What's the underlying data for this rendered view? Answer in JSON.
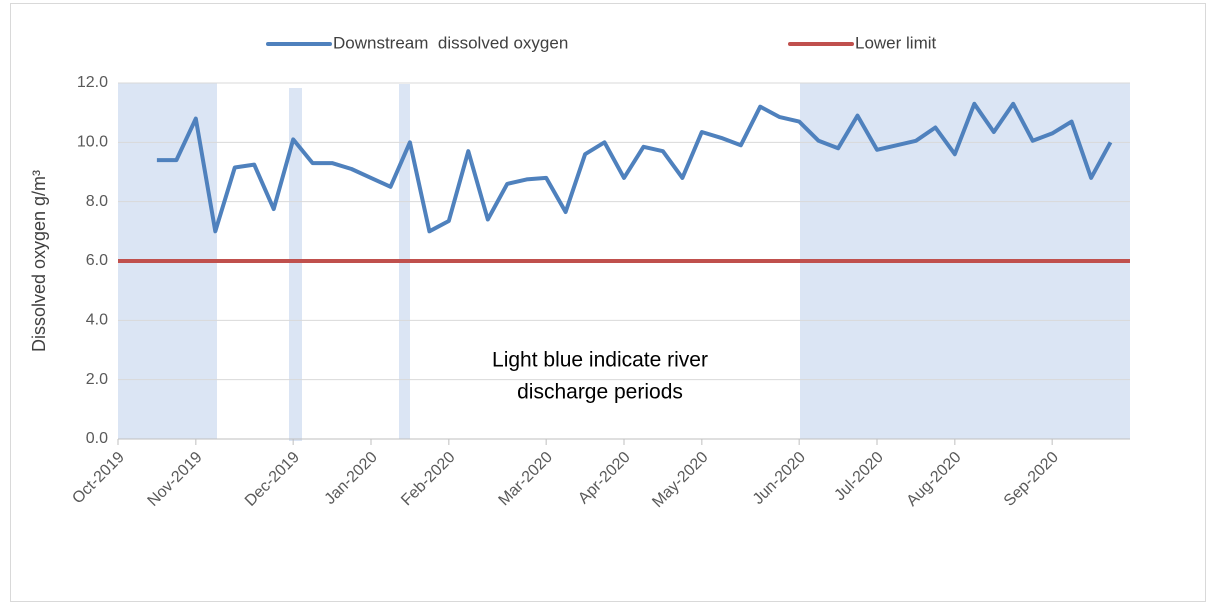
{
  "chart_data": {
    "type": "line",
    "y_label": "Dissolved oxygen g/m³",
    "annotation": [
      "Light blue indicate river",
      "discharge periods"
    ],
    "categories": [
      "Oct-2019",
      null,
      null,
      null,
      "Nov-2019",
      null,
      null,
      null,
      null,
      "Dec-2019",
      null,
      null,
      null,
      "Jan-2020",
      null,
      null,
      null,
      "Feb-2020",
      null,
      null,
      null,
      null,
      "Mar-2020",
      null,
      null,
      null,
      "Apr-2020",
      null,
      null,
      null,
      "May-2020",
      null,
      null,
      null,
      null,
      "Jun-2020",
      null,
      null,
      null,
      "Jul-2020",
      null,
      null,
      null,
      "Aug-2020",
      null,
      null,
      null,
      null,
      "Sep-2020",
      null,
      null,
      null,
      null
    ],
    "series": [
      {
        "name": "Downstream  dissolved oxygen",
        "color": "#4f81bd",
        "values": [
          null,
          null,
          9.4,
          9.4,
          10.8,
          7.0,
          9.15,
          9.25,
          7.75,
          10.1,
          9.3,
          9.3,
          9.1,
          8.8,
          8.5,
          10.0,
          7.0,
          7.35,
          9.7,
          7.4,
          8.6,
          8.75,
          8.8,
          7.65,
          9.6,
          10.0,
          8.8,
          9.85,
          9.7,
          8.8,
          10.35,
          10.15,
          9.9,
          11.2,
          10.85,
          10.7,
          10.05,
          9.8,
          10.9,
          9.75,
          9.9,
          10.05,
          10.5,
          9.6,
          11.3,
          10.35,
          11.3,
          10.05,
          10.3,
          10.7,
          8.8,
          10.0,
          null
        ]
      },
      {
        "name": "Lower limit",
        "color": "#c0504d",
        "values": [
          6,
          6,
          6,
          6,
          6,
          6,
          6,
          6,
          6,
          6,
          6,
          6,
          6,
          6,
          6,
          6,
          6,
          6,
          6,
          6,
          6,
          6,
          6,
          6,
          6,
          6,
          6,
          6,
          6,
          6,
          6,
          6,
          6,
          6,
          6,
          6,
          6,
          6,
          6,
          6,
          6,
          6,
          6,
          6,
          6,
          6,
          6,
          6,
          6,
          6,
          6,
          6,
          6
        ]
      }
    ],
    "ylim": [
      0,
      12
    ],
    "yticks": [
      {
        "value": 0,
        "label": "0.0"
      },
      {
        "value": 2,
        "label": "2.0"
      },
      {
        "value": 4,
        "label": "4.0"
      },
      {
        "value": 6,
        "label": "6.0"
      },
      {
        "value": 8,
        "label": "8.0"
      },
      {
        "value": 10,
        "label": "10.0"
      },
      {
        "value": 12,
        "label": "12.0"
      }
    ],
    "grid": true,
    "legend": "top"
  }
}
